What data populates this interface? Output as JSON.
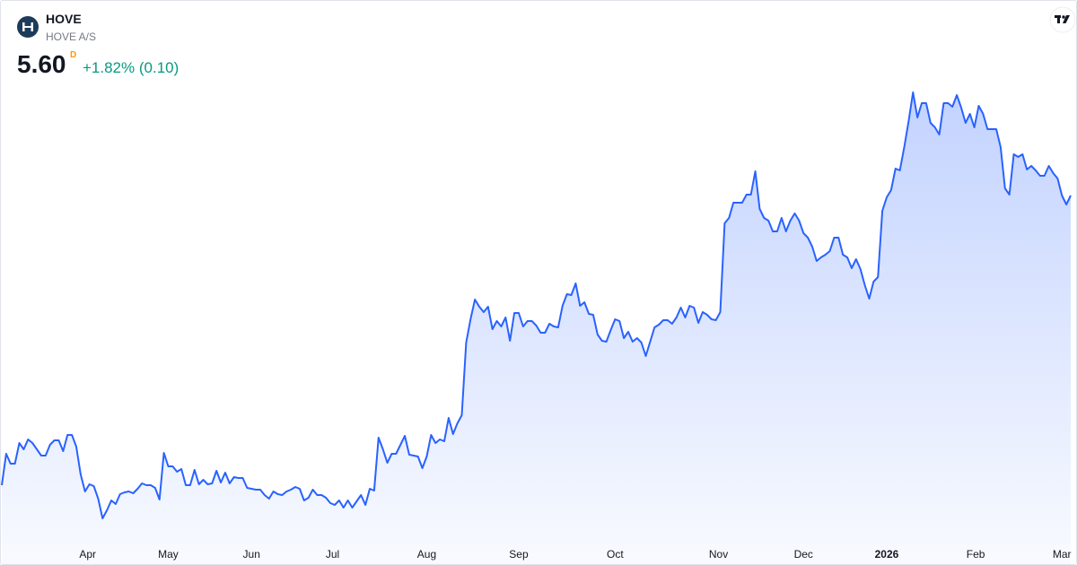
{
  "chart_data": {
    "type": "area",
    "title": "HOVE",
    "subtitle": "HOVE A/S",
    "last_price": "5.60",
    "interval": "D",
    "change": "+1.82% (0.10)",
    "color": "#2962ff",
    "xlim": [
      0,
      244
    ],
    "ylim": [
      1.9,
      7.0
    ],
    "xticks": [
      {
        "value": 19.6,
        "label": "Apr"
      },
      {
        "value": 38,
        "label": "May"
      },
      {
        "value": 57,
        "label": "Jun"
      },
      {
        "value": 75.5,
        "label": "Jul"
      },
      {
        "value": 97,
        "label": "Aug"
      },
      {
        "value": 118,
        "label": "Sep"
      },
      {
        "value": 140,
        "label": "Oct"
      },
      {
        "value": 163.6,
        "label": "Nov"
      },
      {
        "value": 183,
        "label": "Dec"
      },
      {
        "value": 202,
        "label": "2026"
      },
      {
        "value": 222.3,
        "label": "Feb"
      },
      {
        "value": 242,
        "label": "Mar"
      }
    ],
    "values": [
      2.37,
      2.72,
      2.61,
      2.61,
      2.84,
      2.77,
      2.88,
      2.84,
      2.77,
      2.7,
      2.7,
      2.82,
      2.87,
      2.87,
      2.75,
      2.93,
      2.93,
      2.8,
      2.49,
      2.3,
      2.38,
      2.36,
      2.22,
      2.0,
      2.09,
      2.2,
      2.16,
      2.27,
      2.29,
      2.3,
      2.28,
      2.33,
      2.39,
      2.37,
      2.37,
      2.34,
      2.21,
      2.73,
      2.58,
      2.58,
      2.52,
      2.55,
      2.37,
      2.37,
      2.54,
      2.38,
      2.43,
      2.38,
      2.39,
      2.53,
      2.4,
      2.51,
      2.39,
      2.46,
      2.45,
      2.45,
      2.34,
      2.33,
      2.32,
      2.32,
      2.26,
      2.22,
      2.3,
      2.27,
      2.26,
      2.3,
      2.32,
      2.35,
      2.33,
      2.2,
      2.23,
      2.32,
      2.26,
      2.26,
      2.23,
      2.17,
      2.15,
      2.2,
      2.12,
      2.2,
      2.12,
      2.19,
      2.26,
      2.15,
      2.33,
      2.31,
      2.9,
      2.77,
      2.62,
      2.72,
      2.72,
      2.82,
      2.92,
      2.71,
      2.7,
      2.69,
      2.56,
      2.69,
      2.93,
      2.84,
      2.88,
      2.86,
      3.12,
      2.94,
      3.06,
      3.15,
      3.96,
      4.22,
      4.44,
      4.36,
      4.3,
      4.36,
      4.11,
      4.2,
      4.14,
      4.24,
      3.98,
      4.29,
      4.29,
      4.14,
      4.2,
      4.2,
      4.15,
      4.07,
      4.07,
      4.17,
      4.14,
      4.13,
      4.37,
      4.5,
      4.49,
      4.62,
      4.37,
      4.41,
      4.28,
      4.27,
      4.05,
      3.98,
      3.97,
      4.1,
      4.22,
      4.2,
      4.01,
      4.08,
      3.97,
      4.01,
      3.96,
      3.81,
      3.97,
      4.13,
      4.16,
      4.21,
      4.21,
      4.17,
      4.24,
      4.35,
      4.24,
      4.37,
      4.35,
      4.18,
      4.3,
      4.27,
      4.22,
      4.21,
      4.3,
      5.29,
      5.35,
      5.52,
      5.52,
      5.52,
      5.61,
      5.61,
      5.87,
      5.45,
      5.35,
      5.32,
      5.2,
      5.2,
      5.35,
      5.2,
      5.32,
      5.4,
      5.32,
      5.18,
      5.13,
      5.03,
      4.87,
      4.91,
      4.94,
      4.98,
      5.13,
      5.13,
      4.94,
      4.91,
      4.79,
      4.89,
      4.78,
      4.6,
      4.45,
      4.64,
      4.69,
      5.43,
      5.58,
      5.66,
      5.9,
      5.88,
      6.14,
      6.43,
      6.75,
      6.47,
      6.63,
      6.63,
      6.41,
      6.36,
      6.28,
      6.63,
      6.63,
      6.59,
      6.72,
      6.58,
      6.41,
      6.51,
      6.36,
      6.6,
      6.51,
      6.34,
      6.34,
      6.34,
      6.14,
      5.68,
      5.61,
      6.06,
      6.03,
      6.06,
      5.89,
      5.93,
      5.88,
      5.82,
      5.82,
      5.93,
      5.85,
      5.79,
      5.6,
      5.5,
      5.6
    ]
  }
}
